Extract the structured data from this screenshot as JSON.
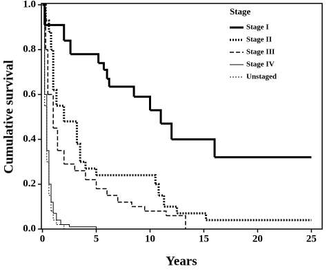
{
  "chart_data": {
    "type": "step",
    "xlabel": "Years",
    "ylabel": "Cumulative survival",
    "legend_title": "Stage",
    "legend": "upper right",
    "xlim": [
      -0.1,
      26
    ],
    "ylim": [
      0,
      1.0
    ],
    "xticks": [
      0,
      5,
      10,
      15,
      20,
      25
    ],
    "yticks": [
      {
        "value": 0,
        "label": "0.0"
      },
      0.2,
      0.4,
      0.6,
      0.8,
      {
        "value": 1,
        "label": "1.0"
      }
    ],
    "series": [
      {
        "name": "Stage I",
        "color": "#000000",
        "linestyle": "solid",
        "width": 3,
        "x": [
          0,
          0.2,
          2,
          2.6,
          5.2,
          5.7,
          6,
          6.2,
          8.5,
          10,
          11,
          12,
          16,
          25
        ],
        "values": [
          1.0,
          0.91,
          0.84,
          0.78,
          0.74,
          0.71,
          0.67,
          0.635,
          0.59,
          0.53,
          0.47,
          0.4,
          0.32,
          0.32
        ]
      },
      {
        "name": "Stage II",
        "color": "#000000",
        "linestyle": "dotted",
        "width": 3,
        "x": [
          0,
          0.3,
          0.6,
          0.8,
          1,
          1.3,
          2,
          3.2,
          3.5,
          4,
          5,
          10.5,
          10.8,
          11.3,
          12.5,
          15.2,
          25
        ],
        "values": [
          1.0,
          0.93,
          0.88,
          0.8,
          0.62,
          0.55,
          0.48,
          0.38,
          0.3,
          0.27,
          0.24,
          0.2,
          0.15,
          0.1,
          0.07,
          0.04,
          0.04
        ]
      },
      {
        "name": "Stage III",
        "color": "#000000",
        "linestyle": "dashed",
        "width": 1.5,
        "x": [
          0,
          0.3,
          0.5,
          1,
          1.4,
          2,
          3,
          4,
          5,
          6,
          7,
          8.3,
          9.5,
          11.5,
          13.3
        ],
        "values": [
          1.0,
          0.8,
          0.6,
          0.45,
          0.35,
          0.29,
          0.26,
          0.22,
          0.18,
          0.15,
          0.12,
          0.1,
          0.08,
          0.06,
          0.0
        ]
      },
      {
        "name": "Stage IV",
        "color": "#000000",
        "linestyle": "solid",
        "width": 1,
        "x": [
          0,
          0.2,
          0.4,
          0.6,
          0.8,
          1,
          1.3,
          1.7,
          2.5,
          5
        ],
        "values": [
          1.0,
          0.6,
          0.35,
          0.2,
          0.12,
          0.07,
          0.04,
          0.02,
          0.01,
          0.0
        ]
      },
      {
        "name": "Unstaged",
        "color": "#000000",
        "linestyle": "dotted",
        "width": 1,
        "x": [
          0,
          0.2,
          0.4,
          0.6,
          0.8,
          1,
          1.3,
          2
        ],
        "values": [
          1.0,
          0.55,
          0.3,
          0.15,
          0.08,
          0.04,
          0.02,
          0.0
        ]
      }
    ]
  }
}
